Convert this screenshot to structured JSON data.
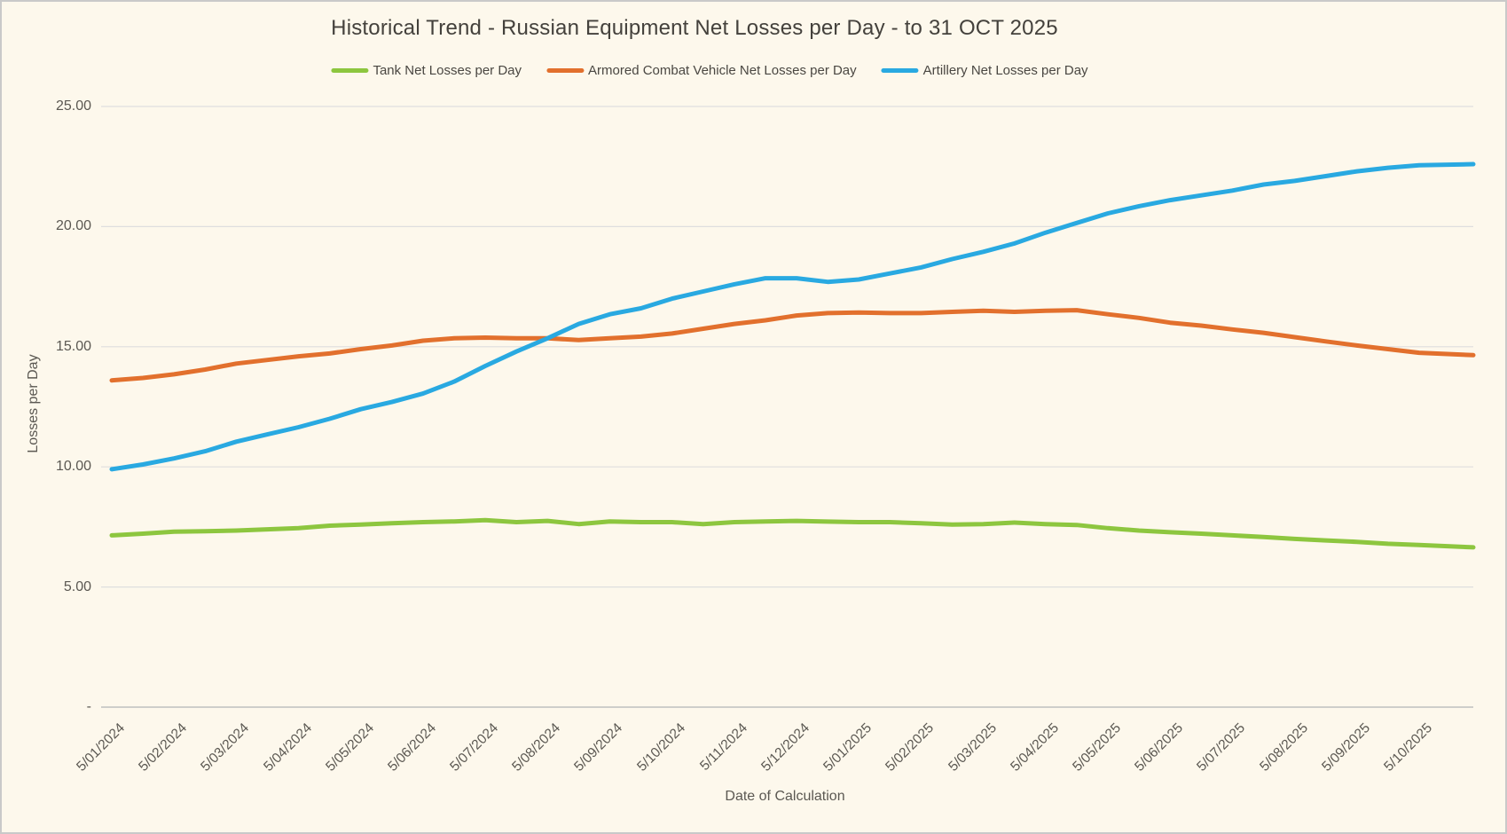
{
  "theme": {
    "background": "#FDF8EC",
    "frame_border": "#C9C9C9",
    "gridline_color": "#DEDEDE",
    "axis_line_color": "#BFBFBF",
    "title_color": "#44413C",
    "tick_label_color": "#5B5852"
  },
  "chart_data": {
    "type": "line",
    "title": "Historical Trend - Russian Equipment Net Losses per Day - to 31 OCT 2025",
    "xlabel": "Date of Calculation",
    "ylabel": "Losses per Day",
    "ylim": [
      0,
      25
    ],
    "grid": "horizontal",
    "legend_position": "top",
    "y_ticks": [
      {
        "label": "-",
        "value": 0
      },
      {
        "label": "5.00",
        "value": 5
      },
      {
        "label": "10.00",
        "value": 10
      },
      {
        "label": "15.00",
        "value": 15
      },
      {
        "label": "20.00",
        "value": 20
      },
      {
        "label": "25.00",
        "value": 25
      }
    ],
    "categories": [
      "5/01/2024",
      "5/02/2024",
      "5/03/2024",
      "5/04/2024",
      "5/05/2024",
      "5/06/2024",
      "5/07/2024",
      "5/08/2024",
      "5/09/2024",
      "5/10/2024",
      "5/11/2024",
      "5/12/2024",
      "5/01/2025",
      "5/02/2025",
      "5/03/2025",
      "5/04/2025",
      "5/05/2025",
      "5/06/2025",
      "5/07/2025",
      "5/08/2025",
      "5/09/2025",
      "5/10/2025"
    ],
    "x_months": [
      0,
      0.5,
      1,
      1.5,
      2,
      2.5,
      3,
      3.5,
      4,
      4.5,
      5,
      5.5,
      6,
      6.5,
      7,
      7.5,
      8,
      8.5,
      9,
      9.5,
      10,
      10.5,
      11,
      11.5,
      12,
      12.5,
      13,
      13.5,
      14,
      14.5,
      15,
      15.5,
      16,
      16.5,
      17,
      17.5,
      18,
      18.5,
      19,
      19.5,
      20,
      20.5,
      21,
      21.87
    ],
    "series": [
      {
        "name": "Tank Net Losses per Day",
        "color": "#8DC63F",
        "values": [
          7.15,
          7.22,
          7.3,
          7.32,
          7.35,
          7.4,
          7.45,
          7.55,
          7.6,
          7.65,
          7.7,
          7.73,
          7.78,
          7.7,
          7.75,
          7.62,
          7.73,
          7.7,
          7.7,
          7.62,
          7.7,
          7.73,
          7.75,
          7.72,
          7.7,
          7.7,
          7.65,
          7.6,
          7.62,
          7.68,
          7.62,
          7.58,
          7.45,
          7.35,
          7.28,
          7.22,
          7.15,
          7.08,
          7.0,
          6.94,
          6.88,
          6.8,
          6.75,
          6.65
        ]
      },
      {
        "name": "Armored Combat Vehicle Net Losses per Day",
        "color": "#E2702D",
        "values": [
          13.6,
          13.7,
          13.85,
          14.05,
          14.3,
          14.45,
          14.6,
          14.72,
          14.9,
          15.05,
          15.25,
          15.35,
          15.38,
          15.35,
          15.35,
          15.28,
          15.35,
          15.42,
          15.55,
          15.75,
          15.95,
          16.1,
          16.3,
          16.4,
          16.42,
          16.4,
          16.4,
          16.45,
          16.5,
          16.45,
          16.5,
          16.52,
          16.35,
          16.2,
          16.0,
          15.88,
          15.72,
          15.58,
          15.4,
          15.22,
          15.05,
          14.9,
          14.75,
          14.65
        ]
      },
      {
        "name": "Artillery Net Losses per Day",
        "color": "#29A9E1",
        "values": [
          9.9,
          10.1,
          10.35,
          10.65,
          11.05,
          11.35,
          11.65,
          12.0,
          12.4,
          12.7,
          13.05,
          13.55,
          14.2,
          14.8,
          15.35,
          15.95,
          16.35,
          16.6,
          17.0,
          17.3,
          17.6,
          17.85,
          17.85,
          17.7,
          17.8,
          18.05,
          18.3,
          18.65,
          18.95,
          19.3,
          19.75,
          20.15,
          20.55,
          20.85,
          21.1,
          21.3,
          21.5,
          21.75,
          21.9,
          22.1,
          22.3,
          22.45,
          22.55,
          22.6
        ]
      }
    ]
  }
}
